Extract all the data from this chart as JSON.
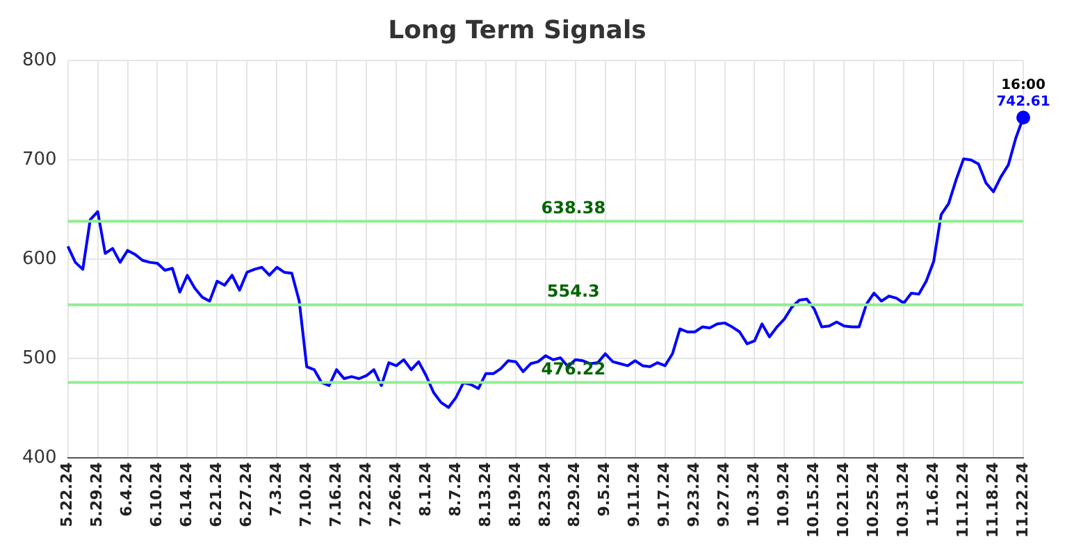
{
  "chart_data": {
    "type": "line",
    "title": "Long Term Signals",
    "categories": [
      "5.22.24",
      null,
      null,
      null,
      "5.29.24",
      null,
      null,
      null,
      "6.4.24",
      null,
      null,
      null,
      "6.10.24",
      null,
      null,
      null,
      "6.14.24",
      null,
      null,
      null,
      "6.21.24",
      null,
      null,
      null,
      "6.27.24",
      null,
      null,
      null,
      "7.3.24",
      null,
      null,
      null,
      "7.10.24",
      null,
      null,
      null,
      "7.16.24",
      null,
      null,
      null,
      "7.22.24",
      null,
      null,
      null,
      "7.26.24",
      null,
      null,
      null,
      "8.1.24",
      null,
      null,
      null,
      "8.7.24",
      null,
      null,
      null,
      "8.13.24",
      null,
      null,
      null,
      "8.19.24",
      null,
      null,
      null,
      "8.23.24",
      null,
      null,
      null,
      "8.29.24",
      null,
      null,
      null,
      "9.5.24",
      null,
      null,
      null,
      "9.11.24",
      null,
      null,
      null,
      "9.17.24",
      null,
      null,
      null,
      "9.23.24",
      null,
      null,
      null,
      "9.27.24",
      null,
      null,
      null,
      "10.3.24",
      null,
      null,
      null,
      "10.9.24",
      null,
      null,
      null,
      "10.15.24",
      null,
      null,
      null,
      "10.21.24",
      null,
      null,
      null,
      "10.25.24",
      null,
      null,
      null,
      "10.31.24",
      null,
      null,
      null,
      "11.6.24",
      null,
      null,
      null,
      "11.12.24",
      null,
      null,
      null,
      "11.18.24",
      null,
      null,
      null,
      "11.22.24"
    ],
    "series": [
      {
        "color": "#0000ff",
        "values": [
          613,
          597,
          590,
          640,
          648,
          606,
          611,
          597,
          609,
          605,
          599,
          597,
          596,
          589,
          591,
          567,
          584,
          571,
          562,
          558,
          578,
          574,
          584,
          569,
          587,
          590,
          592,
          584,
          592,
          587,
          586,
          558,
          492,
          489,
          476,
          473,
          489,
          480,
          482,
          480,
          483,
          489,
          473,
          496,
          493,
          499,
          489,
          497,
          483,
          466,
          456,
          451,
          461,
          476,
          474,
          470,
          485,
          485,
          490,
          498,
          497,
          487,
          495,
          497,
          503,
          499,
          501,
          492,
          499,
          498,
          495,
          496,
          505,
          497,
          495,
          493,
          498,
          493,
          492,
          496,
          493,
          505,
          530,
          527,
          527,
          532,
          531,
          535,
          536,
          532,
          527,
          515,
          518,
          535,
          522,
          532,
          540,
          552,
          559,
          560,
          550,
          532,
          533,
          537,
          533,
          532,
          532,
          555,
          566,
          558,
          563,
          561,
          556,
          566,
          565,
          578,
          598,
          645,
          656,
          680,
          701,
          700,
          696,
          677,
          668,
          683,
          695,
          722,
          742.61
        ],
        "value_labels": [
          null,
          null,
          null,
          null,
          null,
          null,
          null,
          null,
          null,
          null,
          null,
          null,
          null,
          null,
          null,
          null,
          null,
          null,
          null,
          null,
          null,
          null,
          null,
          null,
          null,
          null,
          null,
          null,
          null,
          null,
          null,
          null,
          null,
          null,
          null,
          null,
          null,
          null,
          null,
          null,
          null,
          null,
          null,
          null,
          null,
          null,
          null,
          null,
          null,
          null,
          null,
          null,
          null,
          null,
          null,
          null,
          null,
          null,
          null,
          null,
          null,
          null,
          null,
          null,
          null,
          null,
          null,
          null,
          null,
          null,
          null,
          null,
          null,
          null,
          null,
          null,
          null,
          null,
          null,
          null,
          null,
          null,
          null,
          null,
          null,
          null,
          null,
          null,
          null,
          null,
          null,
          null,
          null,
          null,
          null,
          null,
          null,
          null,
          null,
          null,
          null,
          null,
          null,
          null,
          null,
          null,
          null,
          null,
          null,
          null,
          null,
          null,
          null,
          null,
          null,
          null,
          null,
          null,
          null,
          null,
          null,
          null,
          null,
          null,
          null,
          null,
          null,
          null,
          "742.61"
        ]
      }
    ],
    "ylim": [
      400,
      800
    ],
    "yticks": [
      400,
      500,
      600,
      700,
      800
    ],
    "grid": true,
    "legend": false,
    "ref_lines": [
      {
        "axis": "y",
        "value": 638.38,
        "label": "638.38",
        "color": "#90ee90"
      },
      {
        "axis": "y",
        "value": 554.3,
        "label": "554.3",
        "color": "#90ee90"
      },
      {
        "axis": "y",
        "value": 476.22,
        "label": "476.22",
        "color": "#90ee90"
      }
    ],
    "annotations": [
      {
        "text": "16:00",
        "x": "11.22.24",
        "y": 742.61
      }
    ]
  }
}
